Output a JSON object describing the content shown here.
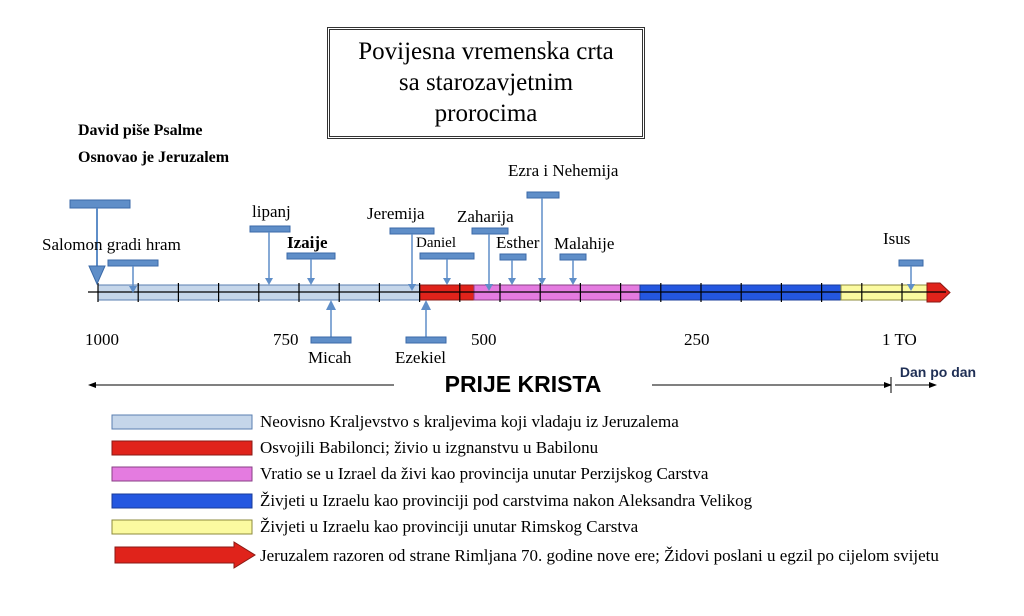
{
  "title": [
    "Povijesna vremenska crta",
    "sa starozavjetnim",
    "prorocima"
  ],
  "header_note": [
    "David piše Psalme",
    "Osnovao je Jeruzalem"
  ],
  "prophets_above": [
    {
      "label": "Salomon gradi hram"
    },
    {
      "label": "lipanj"
    },
    {
      "label": "Izaije"
    },
    {
      "label": "Jeremija"
    },
    {
      "label": "Daniel"
    },
    {
      "label": "Zaharija"
    },
    {
      "label": "Esther"
    },
    {
      "label": "Ezra i Nehemija"
    },
    {
      "label": "Malahije"
    },
    {
      "label": "Isus"
    }
  ],
  "prophets_below": [
    {
      "label": "Micah"
    },
    {
      "label": "Ezekiel"
    }
  ],
  "ticks": [
    "1000",
    "750",
    "500",
    "250",
    "1 TO"
  ],
  "era_label": "PRIJE KRISTA",
  "day_label": "Dan po dan",
  "legend": [
    {
      "color": "#c5d6ea",
      "text": "Neovisno Kraljevstvo s kraljevima koji vladaju iz Jeruzalema"
    },
    {
      "color": "#e0231b",
      "text": "Osvojili Babilonci; živio u izgnanstvu u Babilonu"
    },
    {
      "color": "#e47be0",
      "text": "Vratio se u Izrael da živi kao provincija unutar Perzijskog Carstva"
    },
    {
      "color": "#2457e0",
      "text": "Živjeti u Izraelu kao provinciji pod carstvima nakon Aleksandra Velikog"
    },
    {
      "color": "#fbfaa0",
      "text": "Živjeti u Izraelu kao provinciji unutar Rimskog Carstva"
    },
    {
      "color": "#e0231b",
      "text": "Jeruzalem razoren od strane Rimljana 70. godine nove ere; Židovi poslani u egzil po cijelom svijetu"
    }
  ]
}
